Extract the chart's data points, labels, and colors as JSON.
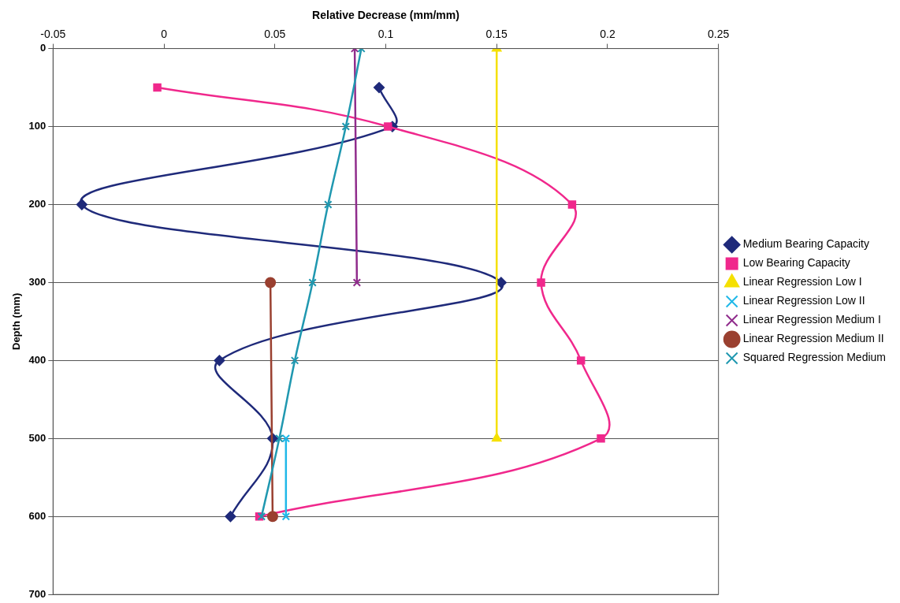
{
  "chart_data": {
    "type": "line",
    "xlabel": "Relative Decrease (mm/mm)",
    "ylabel": "Depth (mm)",
    "xlim": [
      -0.05,
      0.25
    ],
    "xticks": [
      -0.05,
      0,
      0.05,
      0.1,
      0.15,
      0.2,
      0.25
    ],
    "ylim": [
      700,
      0
    ],
    "yticks": [
      0,
      100,
      200,
      300,
      400,
      500,
      600,
      700
    ],
    "grid": "y",
    "legend": "right",
    "line_style": "solid",
    "series": [
      {
        "name": "Medium Bearing Capacity",
        "color": "#1f2a7a",
        "marker": "diamond",
        "x": [
          0.097,
          0.103,
          -0.037,
          0.152,
          0.025,
          0.049,
          0.03
        ],
        "values": [
          50,
          100,
          200,
          300,
          400,
          500,
          600
        ]
      },
      {
        "name": "Low Bearing Capacity",
        "color": "#f0288c",
        "marker": "square",
        "x": [
          -0.003,
          0.101,
          0.184,
          0.17,
          0.188,
          0.197,
          0.043
        ],
        "values": [
          50,
          100,
          200,
          300,
          400,
          500,
          600
        ]
      },
      {
        "name": "Linear Regression Low I",
        "color": "#f5e000",
        "marker": "triangle",
        "x": [
          0.15,
          0.15
        ],
        "values": [
          0,
          500
        ]
      },
      {
        "name": "Linear Regression Low II",
        "color": "#20b8e8",
        "marker": "cross",
        "x": [
          0.055,
          0.055
        ],
        "values": [
          500,
          600
        ]
      },
      {
        "name": "Linear Regression Medium I",
        "color": "#902c8c",
        "marker": "cross",
        "x": [
          0.086,
          0.087
        ],
        "values": [
          0,
          300
        ]
      },
      {
        "name": "Linear Regression Medium II",
        "color": "#9a4030",
        "marker": "circle",
        "x": [
          0.048,
          0.049
        ],
        "values": [
          300,
          600
        ]
      },
      {
        "name": "Squared Regression Medium",
        "color": "#2098b0",
        "marker": "cross",
        "x": [
          0.089,
          0.082,
          0.074,
          0.067,
          0.059,
          0.052,
          0.044
        ],
        "values": [
          0,
          100,
          200,
          300,
          400,
          500,
          600
        ]
      }
    ]
  }
}
